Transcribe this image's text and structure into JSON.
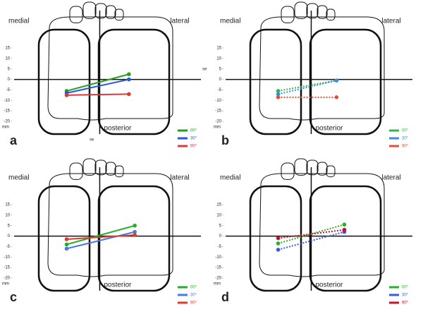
{
  "chart_data": [
    {
      "type": "line",
      "panel": "a",
      "medial_label": "medial",
      "lateral_label": "lateral",
      "posterior_label": "posterior",
      "y_unit": "mm",
      "annotations": [
        "se",
        "se"
      ],
      "dashed": false,
      "ylim": [
        -20,
        15
      ],
      "yticks": [
        15,
        10,
        5,
        0,
        -5,
        -10,
        -15,
        -20
      ],
      "xlim": [
        -44,
        52
      ],
      "series": [
        {
          "name": "00°",
          "color": "#22a022",
          "x": [
            -17,
            15
          ],
          "values": [
            -5.5,
            2.5
          ]
        },
        {
          "name": "30°",
          "color": "#2a55d8",
          "x": [
            -17,
            15
          ],
          "values": [
            -6.5,
            0
          ]
        },
        {
          "name": "90°",
          "color": "#d83a3a",
          "x": [
            -17,
            15
          ],
          "values": [
            -7.5,
            -7
          ]
        }
      ]
    },
    {
      "type": "line",
      "panel": "b",
      "medial_label": "medial",
      "lateral_label": "lateral",
      "posterior_label": "posterior",
      "y_unit": "mm",
      "dashed": true,
      "ylim": [
        -20,
        15
      ],
      "yticks": [
        15,
        10,
        5,
        0,
        -5,
        -10,
        -15,
        -20
      ],
      "xlim": [
        -44,
        52
      ],
      "series": [
        {
          "name": "00°",
          "color": "#3cb04a",
          "x": [
            -17,
            13
          ],
          "values": [
            -5.5,
            -0.5
          ]
        },
        {
          "name": "30°",
          "color": "#3a8ee0",
          "x": [
            -17,
            13
          ],
          "values": [
            -7,
            -0.5
          ]
        },
        {
          "name": "90°",
          "color": "#e0503a",
          "x": [
            -17,
            13
          ],
          "values": [
            -8.5,
            -8.5
          ]
        }
      ]
    },
    {
      "type": "line",
      "panel": "c",
      "medial_label": "medial",
      "lateral_label": "lateral",
      "posterior_label": "posterior",
      "y_unit": "mm",
      "dashed": false,
      "ylim": [
        -20,
        15
      ],
      "yticks": [
        15,
        10,
        5,
        0,
        -5,
        -10,
        -15,
        -20
      ],
      "xlim": [
        -44,
        52
      ],
      "series": [
        {
          "name": "00°",
          "color": "#22b022",
          "x": [
            -17,
            18
          ],
          "values": [
            -4,
            5
          ]
        },
        {
          "name": "30°",
          "color": "#4a78e0",
          "x": [
            -17,
            18
          ],
          "values": [
            -6,
            2
          ]
        },
        {
          "name": "90°",
          "color": "#e03a2a",
          "x": [
            -17,
            18
          ],
          "values": [
            -1.5,
            0.5
          ]
        }
      ]
    },
    {
      "type": "line",
      "panel": "d",
      "medial_label": "medial",
      "lateral_label": "lateral",
      "posterior_label": "posterior",
      "y_unit": "mm",
      "dashed": true,
      "ylim": [
        -20,
        15
      ],
      "yticks": [
        15,
        10,
        5,
        0,
        -5,
        -10,
        -15,
        -20
      ],
      "xlim": [
        -44,
        52
      ],
      "series": [
        {
          "name": "00°",
          "color": "#2cb02c",
          "x": [
            -17,
            17
          ],
          "values": [
            -3.5,
            5.5
          ]
        },
        {
          "name": "30°",
          "color": "#3a5ae0",
          "x": [
            -17,
            17
          ],
          "values": [
            -6.5,
            2
          ]
        },
        {
          "name": "90°",
          "color": "#c8102e",
          "x": [
            -17,
            17
          ],
          "values": [
            -1,
            3
          ]
        }
      ]
    }
  ]
}
